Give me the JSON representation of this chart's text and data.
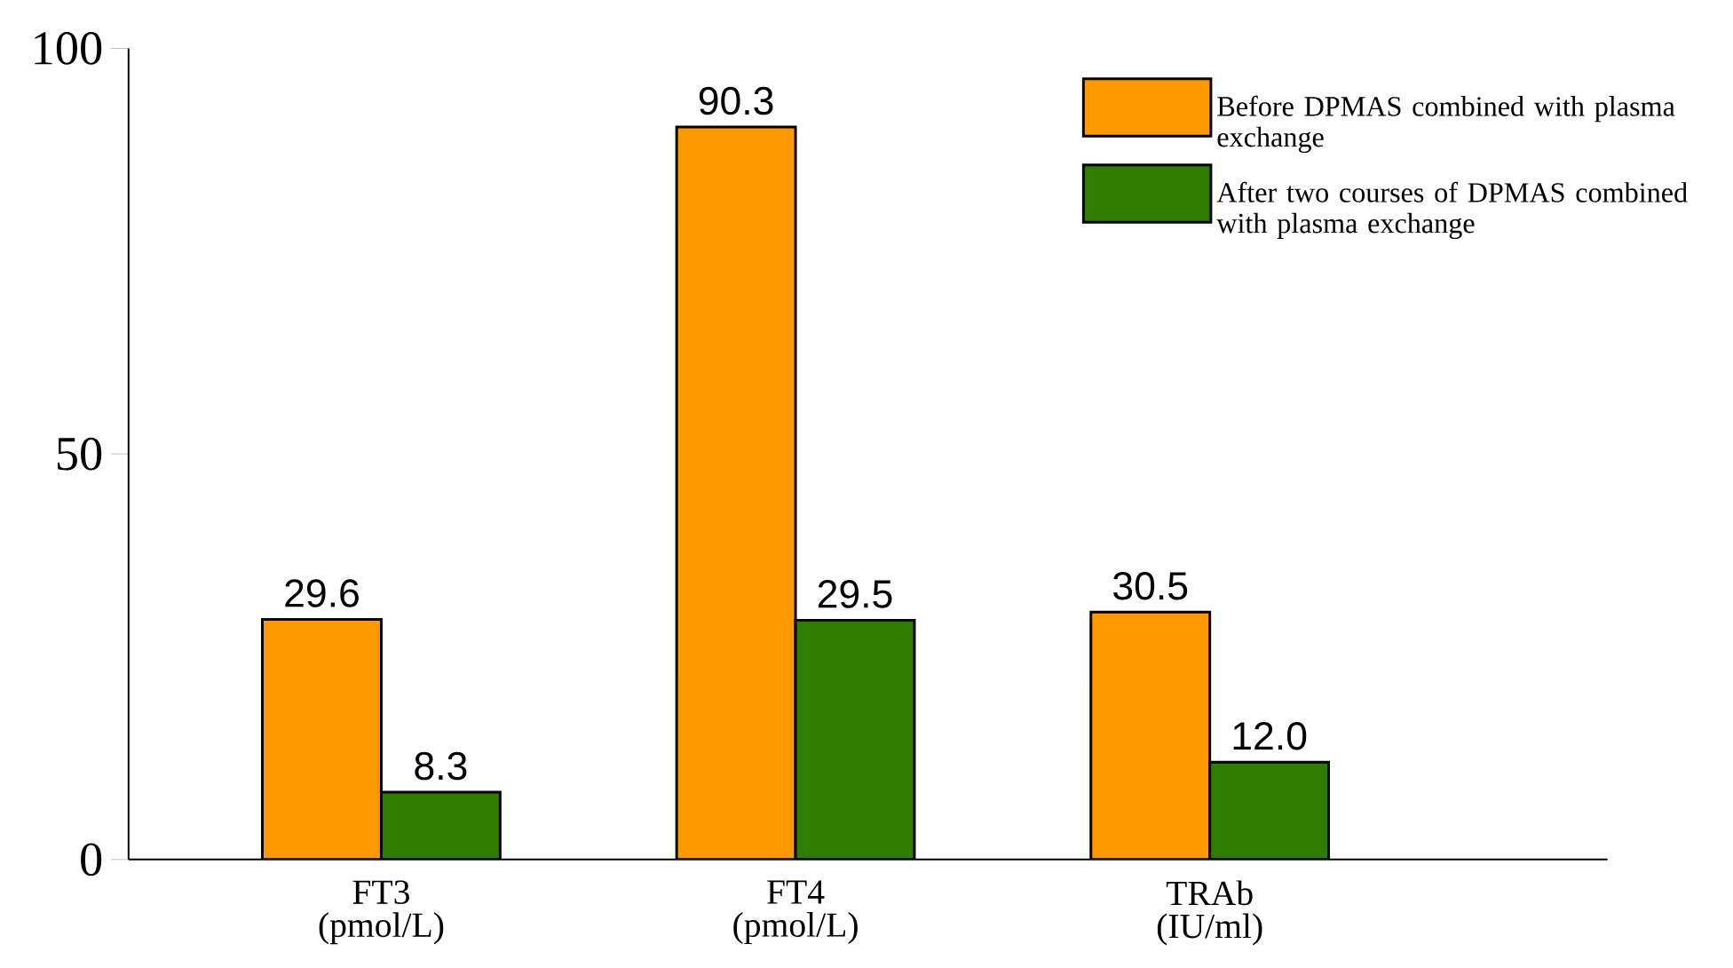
{
  "chart_data": {
    "type": "bar",
    "categories": [
      "FT3 (pmol/L)",
      "FT4 (pmol/L)",
      "TRAb (IU/ml)"
    ],
    "series": [
      {
        "name": "Before DPMAS combined with plasma exchange",
        "color": "#ff9900",
        "values": [
          29.6,
          90.3,
          30.5
        ],
        "value_labels": [
          "29.6",
          "90.3",
          "30.5"
        ]
      },
      {
        "name": "After two courses of DPMAS combined with plasma exchange",
        "color": "#2e7d00",
        "values": [
          8.3,
          29.5,
          12.0
        ],
        "value_labels": [
          "8.3",
          "29.5",
          "12.0"
        ]
      }
    ],
    "ylim": [
      0,
      100
    ],
    "yticks": [
      0,
      50,
      100
    ],
    "grid": false,
    "legend": "top right"
  }
}
